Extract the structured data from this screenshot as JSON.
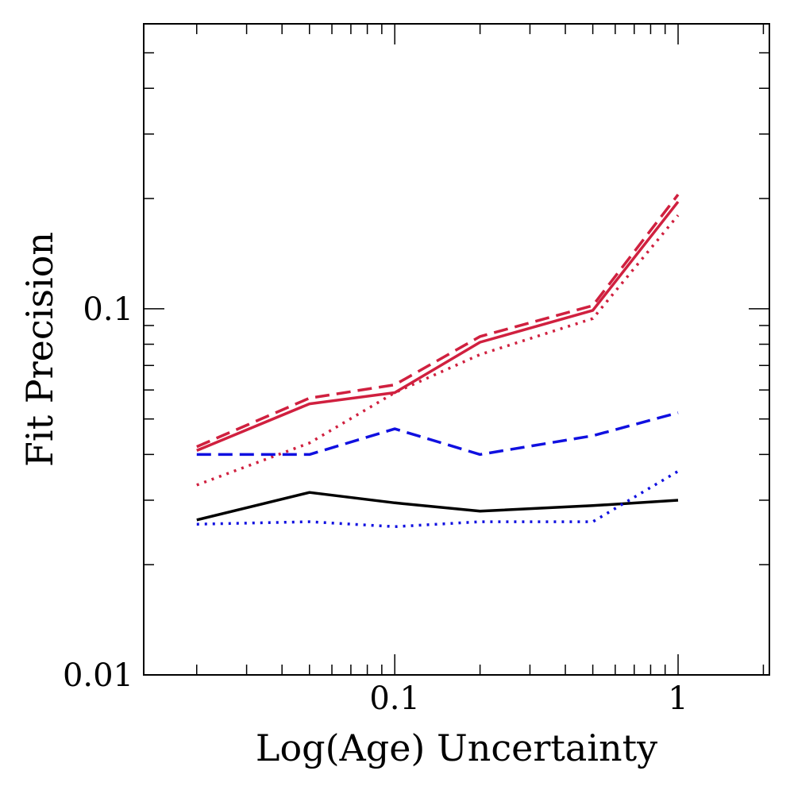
{
  "chart_data": {
    "type": "line",
    "title": "",
    "xlabel": "Log(Age) Uncertainty",
    "ylabel": "Fit Precision",
    "x_scale": "log",
    "y_scale": "log",
    "xlim": [
      0.013,
      2.1
    ],
    "ylim": [
      0.01,
      0.6
    ],
    "x_ticks": [
      {
        "value": 0.1,
        "label": "0.1"
      },
      {
        "value": 1,
        "label": "1"
      }
    ],
    "y_ticks": [
      {
        "value": 0.01,
        "label": "0.01"
      },
      {
        "value": 0.1,
        "label": "0.1"
      }
    ],
    "grid": false,
    "legend": "none",
    "x": [
      0.02,
      0.05,
      0.1,
      0.2,
      0.5,
      1.0
    ],
    "series": [
      {
        "color": "#d0203f",
        "style": "solid",
        "values": [
          0.041,
          0.055,
          0.059,
          0.081,
          0.099,
          0.196
        ]
      },
      {
        "color": "#d0203f",
        "style": "dashed",
        "values": [
          0.042,
          0.057,
          0.062,
          0.084,
          0.102,
          0.205
        ]
      },
      {
        "color": "#d0203f",
        "style": "dotted",
        "values": [
          0.033,
          0.043,
          0.059,
          0.075,
          0.094,
          0.18
        ]
      },
      {
        "color": "#1010e0",
        "style": "dashed",
        "values": [
          0.04,
          0.04,
          0.047,
          0.04,
          0.045,
          0.052
        ]
      },
      {
        "color": "#000000",
        "style": "solid",
        "values": [
          0.0265,
          0.0315,
          0.0295,
          0.028,
          0.029,
          0.03
        ]
      },
      {
        "color": "#1010e0",
        "style": "dotted",
        "values": [
          0.0258,
          0.0262,
          0.0254,
          0.0262,
          0.0262,
          0.036
        ]
      }
    ]
  }
}
